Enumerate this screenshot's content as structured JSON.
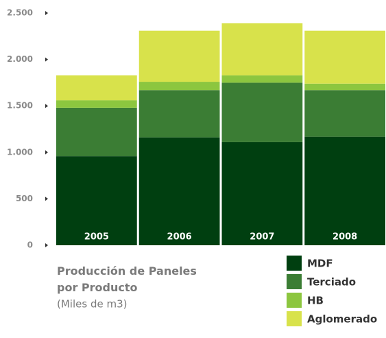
{
  "chart_data": {
    "type": "stacked_bar",
    "title": "Producción de Paneles por Producto",
    "subtitle": "(Miles de m3)",
    "categories": [
      "2005",
      "2006",
      "2007",
      "2008"
    ],
    "series": [
      {
        "name": "MDF",
        "color": "#003f10",
        "values": [
          960,
          1160,
          1110,
          1170
        ]
      },
      {
        "name": "Terciado",
        "color": "#3b7d34",
        "values": [
          520,
          510,
          640,
          500
        ]
      },
      {
        "name": "HB",
        "color": "#8cc63f",
        "values": [
          80,
          90,
          80,
          70
        ]
      },
      {
        "name": "Aglomerado",
        "color": "#d8e24b",
        "values": [
          270,
          550,
          560,
          570
        ]
      }
    ],
    "ylim": [
      0,
      2500
    ],
    "yticks": [
      0,
      500,
      {
        "value": 1000,
        "label": "1.000"
      },
      {
        "value": 1500,
        "label": "1.500"
      },
      {
        "value": 2000,
        "label": "2.000"
      },
      {
        "value": 2500,
        "label": "2.500"
      }
    ],
    "legend": "bottom-right"
  }
}
